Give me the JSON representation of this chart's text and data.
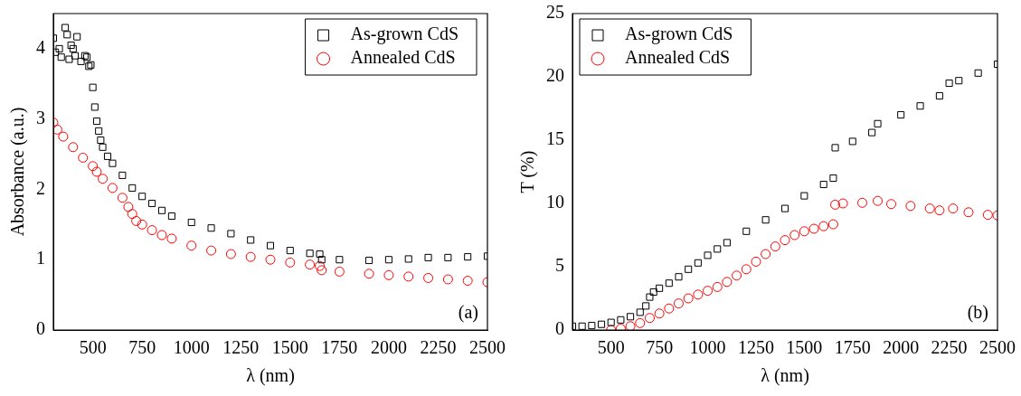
{
  "chart_data": [
    {
      "type": "scatter",
      "xlabel": "λ (nm)",
      "ylabel": "Absorbance (a.u.)",
      "xlim": [
        300,
        2500
      ],
      "xticks": [
        500,
        750,
        1000,
        1250,
        1500,
        1750,
        2000,
        2250,
        2500
      ],
      "ylim": [
        0,
        4.5
      ],
      "yticks": [
        0,
        1,
        2,
        3,
        4
      ],
      "grid": false,
      "legend": "top right",
      "annotations": [
        "(a)"
      ],
      "series": [
        {
          "name": "As-grown CdS",
          "color": "#000000",
          "marker": "square",
          "x": [
            300,
            310,
            330,
            340,
            360,
            370,
            380,
            390,
            400,
            410,
            420,
            440,
            460,
            470,
            480,
            490,
            500,
            510,
            520,
            530,
            540,
            550,
            575,
            600,
            650,
            700,
            750,
            800,
            850,
            900,
            1000,
            1100,
            1200,
            1300,
            1400,
            1500,
            1600,
            1650,
            1660,
            1750,
            1900,
            2000,
            2100,
            2200,
            2300,
            2400,
            2500
          ],
          "values": [
            4.15,
            3.95,
            4.0,
            3.88,
            4.3,
            4.2,
            3.85,
            4.05,
            4.0,
            3.9,
            4.17,
            3.82,
            3.9,
            3.88,
            3.75,
            3.77,
            3.45,
            3.17,
            2.97,
            2.83,
            2.7,
            2.6,
            2.47,
            2.37,
            2.2,
            2.02,
            1.9,
            1.8,
            1.7,
            1.62,
            1.53,
            1.45,
            1.37,
            1.28,
            1.2,
            1.13,
            1.09,
            1.08,
            1.0,
            1.0,
            0.99,
            1.0,
            1.01,
            1.03,
            1.03,
            1.04,
            1.05
          ]
        },
        {
          "name": "Annealed CdS",
          "color": "#ff0000",
          "marker": "circle",
          "x": [
            300,
            320,
            350,
            400,
            450,
            500,
            520,
            550,
            600,
            650,
            680,
            700,
            720,
            750,
            800,
            850,
            900,
            1000,
            1100,
            1200,
            1300,
            1400,
            1500,
            1600,
            1650,
            1660,
            1750,
            1900,
            2000,
            2100,
            2200,
            2300,
            2400,
            2500
          ],
          "values": [
            2.95,
            2.85,
            2.75,
            2.6,
            2.45,
            2.33,
            2.25,
            2.15,
            2.02,
            1.88,
            1.75,
            1.65,
            1.55,
            1.5,
            1.42,
            1.35,
            1.3,
            1.2,
            1.13,
            1.08,
            1.04,
            1.0,
            0.96,
            0.93,
            0.91,
            0.85,
            0.83,
            0.8,
            0.78,
            0.76,
            0.74,
            0.72,
            0.7,
            0.68
          ]
        }
      ]
    },
    {
      "type": "scatter",
      "xlabel": "λ (nm)",
      "ylabel": "T (%)",
      "xlim": [
        300,
        2500
      ],
      "xticks": [
        500,
        750,
        1000,
        1250,
        1500,
        1750,
        2000,
        2250,
        2500
      ],
      "ylim": [
        0,
        25
      ],
      "yticks": [
        0,
        5,
        10,
        15,
        20,
        25
      ],
      "grid": false,
      "legend": "top left",
      "annotations": [
        "(b)"
      ],
      "series": [
        {
          "name": "As-grown CdS",
          "color": "#000000",
          "marker": "square",
          "x": [
            300,
            350,
            400,
            450,
            500,
            550,
            600,
            650,
            680,
            700,
            720,
            750,
            800,
            850,
            900,
            950,
            1000,
            1050,
            1100,
            1200,
            1300,
            1400,
            1500,
            1600,
            1650,
            1660,
            1750,
            1850,
            1880,
            2000,
            2100,
            2200,
            2250,
            2300,
            2400,
            2500
          ],
          "values": [
            0.3,
            0.3,
            0.35,
            0.45,
            0.6,
            0.8,
            1.05,
            1.4,
            1.9,
            2.6,
            3.0,
            3.3,
            3.7,
            4.2,
            4.8,
            5.3,
            5.9,
            6.4,
            6.9,
            7.8,
            8.7,
            9.6,
            10.6,
            11.5,
            12.0,
            14.4,
            14.9,
            15.6,
            16.3,
            17.0,
            17.7,
            18.5,
            19.5,
            19.7,
            20.3,
            21.0
          ]
        },
        {
          "name": "Annealed CdS",
          "color": "#ff0000",
          "marker": "circle",
          "x": [
            500,
            550,
            600,
            650,
            700,
            750,
            800,
            850,
            900,
            950,
            1000,
            1050,
            1100,
            1150,
            1200,
            1250,
            1300,
            1350,
            1400,
            1450,
            1500,
            1550,
            1600,
            1650,
            1660,
            1700,
            1800,
            1880,
            1950,
            2050,
            2150,
            2200,
            2270,
            2350,
            2450,
            2500
          ],
          "values": [
            0,
            0.1,
            0.3,
            0.55,
            0.95,
            1.3,
            1.7,
            2.1,
            2.5,
            2.8,
            3.1,
            3.4,
            3.8,
            4.3,
            4.8,
            5.4,
            6.0,
            6.6,
            7.1,
            7.5,
            7.8,
            8.0,
            8.2,
            8.35,
            9.9,
            10.0,
            10.05,
            10.2,
            9.95,
            9.8,
            9.6,
            9.45,
            9.6,
            9.3,
            9.1,
            9.05
          ]
        }
      ]
    }
  ]
}
